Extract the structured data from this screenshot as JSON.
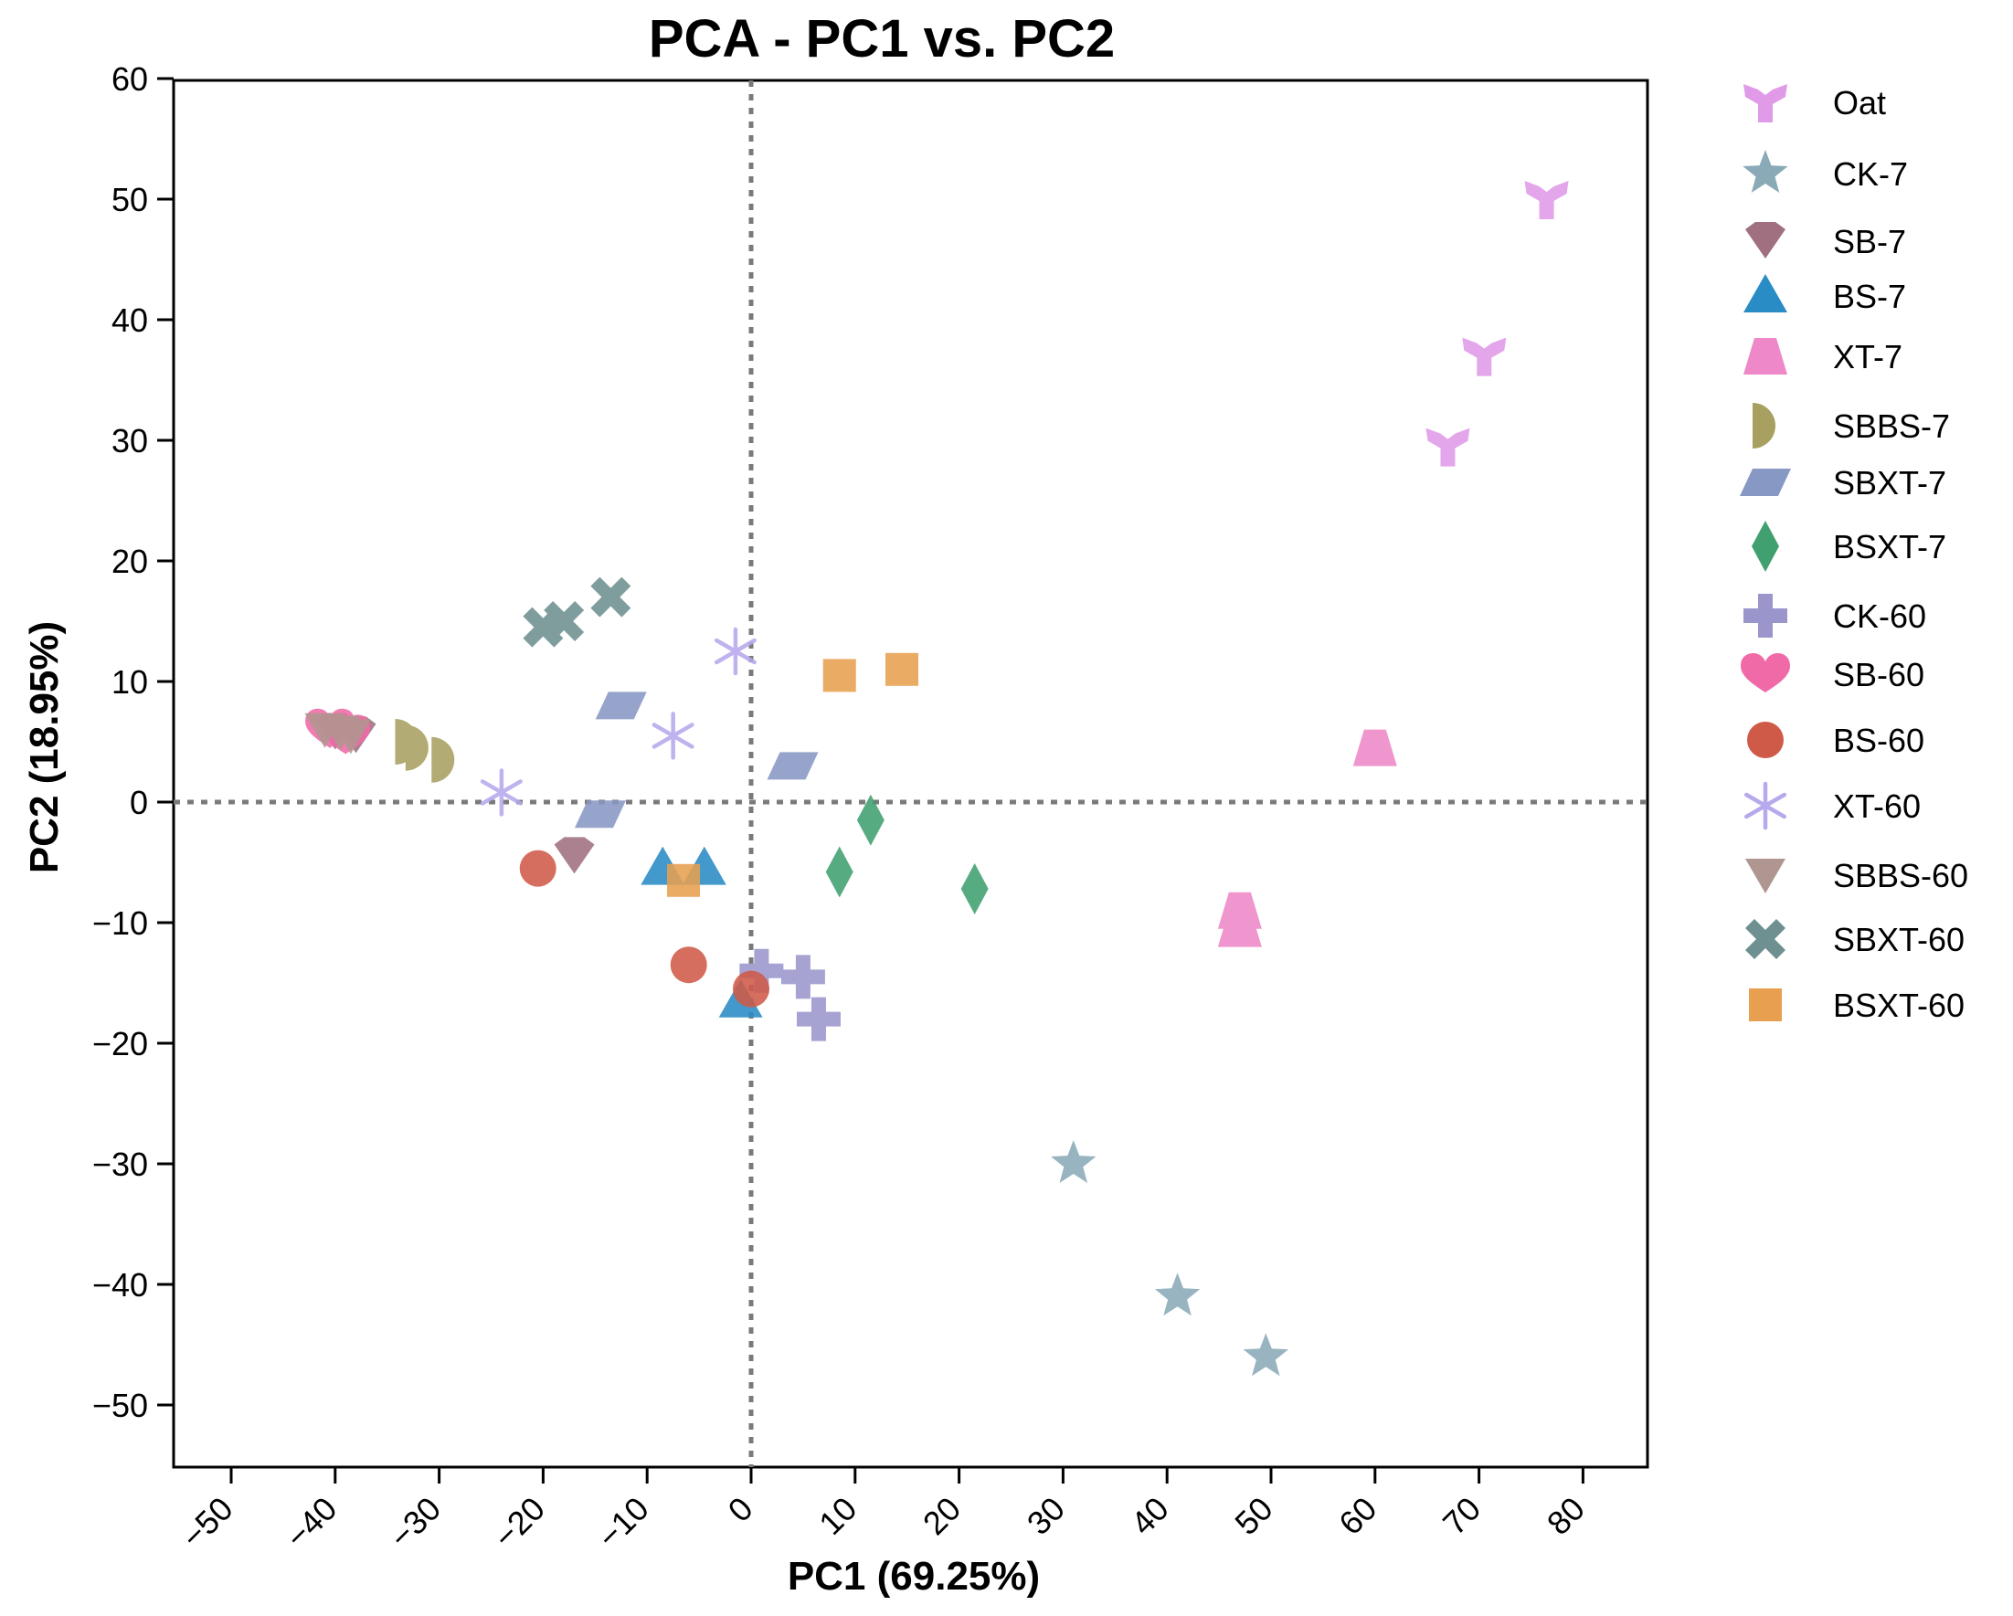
{
  "chart_data": {
    "type": "scatter",
    "title": "PCA - PC1 vs. PC2",
    "xlabel": "PC1 (69.25%)",
    "ylabel": "PC2 (18.95%)",
    "xlim": [
      -57,
      84
    ],
    "ylim": [
      -55,
      60
    ],
    "xticks": [
      -50,
      -40,
      -30,
      -20,
      -10,
      0,
      10,
      20,
      30,
      40,
      50,
      60,
      70,
      80
    ],
    "xtick_labels": [
      "−50",
      "−40",
      "−30",
      "−20",
      "−10",
      "0",
      "10",
      "20",
      "30",
      "40",
      "50",
      "60",
      "70",
      "80"
    ],
    "yticks": [
      60,
      50,
      40,
      30,
      20,
      10,
      0,
      -10,
      -20,
      -30,
      -40,
      -50
    ],
    "ytick_labels": [
      "60",
      "50",
      "40",
      "30",
      "20",
      "10",
      "0",
      "−10",
      "−20",
      "−30",
      "−40",
      "−50"
    ],
    "reference_lines": {
      "x": 0,
      "y": 0,
      "style": "dotted"
    },
    "legend_position": "right",
    "grid": false,
    "series": [
      {
        "name": "Oat",
        "marker": "y-shape",
        "color": "#e09ae8",
        "points": [
          [
            76.5,
            50
          ],
          [
            70.5,
            37
          ],
          [
            67,
            29.5
          ]
        ]
      },
      {
        "name": "CK-7",
        "marker": "star",
        "color": "#8aaab8",
        "points": [
          [
            31,
            -30
          ],
          [
            41,
            -41
          ],
          [
            49.5,
            -46
          ]
        ]
      },
      {
        "name": "SB-7",
        "marker": "pentagon-down",
        "color": "#a07080",
        "points": [
          [
            -38,
            5.5
          ],
          [
            -40,
            5.8
          ],
          [
            -17,
            -4.5
          ]
        ]
      },
      {
        "name": "BS-7",
        "marker": "triangle",
        "color": "#2a8cc4",
        "points": [
          [
            -8.5,
            -5.5
          ],
          [
            -4.5,
            -5.5
          ],
          [
            -1,
            -16.5
          ]
        ]
      },
      {
        "name": "XT-7",
        "marker": "trapezoid",
        "color": "#ee88c8",
        "points": [
          [
            60,
            4.5
          ],
          [
            47,
            -9
          ],
          [
            47,
            -10.5
          ]
        ]
      },
      {
        "name": "SBBS-7",
        "marker": "half-circle",
        "color": "#a8a060",
        "points": [
          [
            -33,
            5
          ],
          [
            -32,
            4.5
          ],
          [
            -29.5,
            3.5
          ]
        ]
      },
      {
        "name": "SBXT-7",
        "marker": "parallelogram",
        "color": "#8898c4",
        "points": [
          [
            -12.5,
            8
          ],
          [
            4,
            3
          ],
          [
            -14.5,
            -1
          ]
        ]
      },
      {
        "name": "BSXT-7",
        "marker": "diamond",
        "color": "#40a070",
        "points": [
          [
            11.5,
            -1.5
          ],
          [
            8.5,
            -5.8
          ],
          [
            21.5,
            -7.2
          ]
        ]
      },
      {
        "name": "CK-60",
        "marker": "plus",
        "color": "#9a96cc",
        "points": [
          [
            1,
            -14
          ],
          [
            5,
            -14.5
          ],
          [
            6.5,
            -18
          ]
        ]
      },
      {
        "name": "SB-60",
        "marker": "heart",
        "color": "#f06aa8",
        "points": [
          [
            -40.5,
            6
          ],
          [
            -39,
            5.5
          ]
        ]
      },
      {
        "name": "BS-60",
        "marker": "circle",
        "color": "#d05a48",
        "points": [
          [
            -20.5,
            -5.5
          ],
          [
            -6,
            -13.5
          ],
          [
            0,
            -15.5
          ]
        ]
      },
      {
        "name": "XT-60",
        "marker": "asterisk",
        "color": "#b8a8ec",
        "points": [
          [
            -1.5,
            12.5
          ],
          [
            -7.5,
            5.5
          ],
          [
            -24,
            0.8
          ]
        ]
      },
      {
        "name": "SBBS-60",
        "marker": "triangle-down",
        "color": "#b09690",
        "points": [
          [
            -41,
            6
          ],
          [
            -39.5,
            5.8
          ],
          [
            -38.5,
            5.5
          ]
        ]
      },
      {
        "name": "SBXT-60",
        "marker": "x-cross",
        "color": "#6e9090",
        "points": [
          [
            -20,
            14.5
          ],
          [
            -18,
            15
          ],
          [
            -13.5,
            17
          ]
        ]
      },
      {
        "name": "BSXT-60",
        "marker": "square",
        "color": "#e8a050",
        "points": [
          [
            8.5,
            10.5
          ],
          [
            14.5,
            11
          ],
          [
            -6.5,
            -6.5
          ]
        ]
      }
    ]
  }
}
